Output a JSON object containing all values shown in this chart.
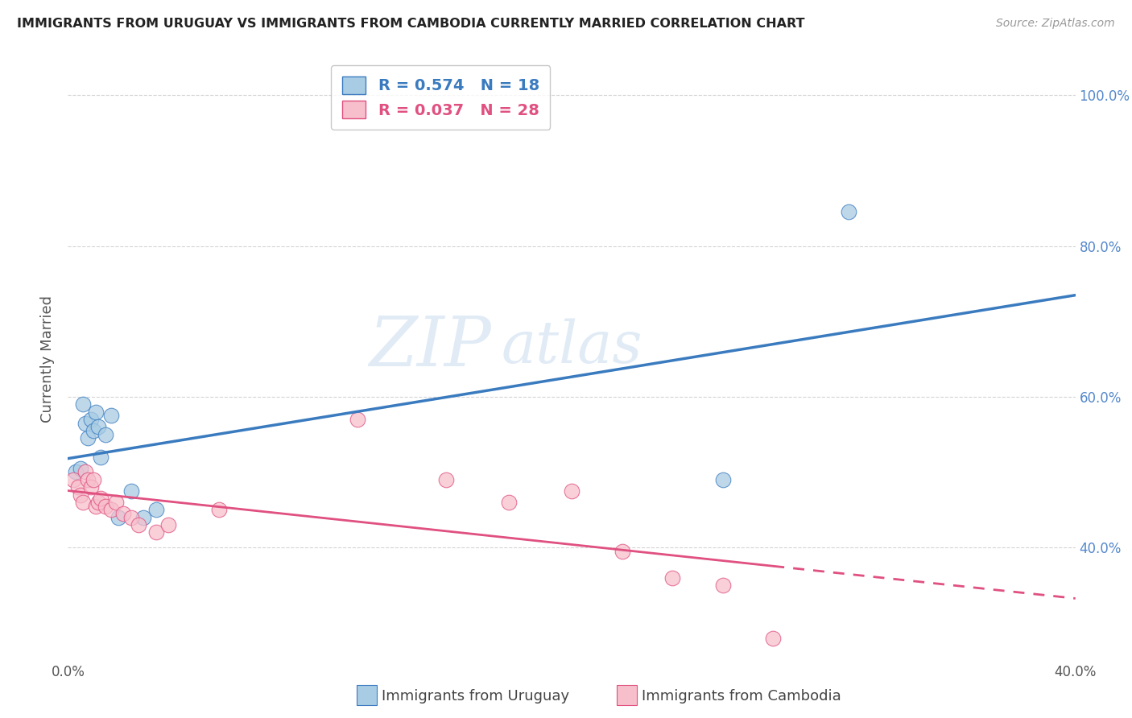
{
  "title": "IMMIGRANTS FROM URUGUAY VS IMMIGRANTS FROM CAMBODIA CURRENTLY MARRIED CORRELATION CHART",
  "source": "Source: ZipAtlas.com",
  "xlabel_label": "Immigrants from Uruguay",
  "ylabel_label": "Currently Married",
  "xlabel2_label": "Immigrants from Cambodia",
  "xmin": 0.0,
  "xmax": 0.4,
  "ymin": 0.25,
  "ymax": 1.05,
  "watermark_line1": "ZIP",
  "watermark_line2": "atlas",
  "uruguay_color": "#a8cce4",
  "cambodia_color": "#f7bfcc",
  "trendline_uruguay_color": "#3a7bbf",
  "trendline_cambodia_color": "#e05080",
  "R_uruguay": 0.574,
  "N_uruguay": 18,
  "R_cambodia": 0.037,
  "N_cambodia": 28,
  "uruguay_x": [
    0.003,
    0.005,
    0.006,
    0.007,
    0.008,
    0.009,
    0.01,
    0.011,
    0.012,
    0.013,
    0.015,
    0.017,
    0.02,
    0.025,
    0.03,
    0.035,
    0.26,
    0.31
  ],
  "uruguay_y": [
    0.5,
    0.505,
    0.59,
    0.565,
    0.545,
    0.57,
    0.555,
    0.58,
    0.56,
    0.52,
    0.55,
    0.575,
    0.44,
    0.475,
    0.44,
    0.45,
    0.49,
    0.845
  ],
  "cambodia_x": [
    0.002,
    0.004,
    0.005,
    0.006,
    0.007,
    0.008,
    0.009,
    0.01,
    0.011,
    0.012,
    0.013,
    0.015,
    0.017,
    0.019,
    0.022,
    0.025,
    0.028,
    0.035,
    0.04,
    0.06,
    0.115,
    0.15,
    0.175,
    0.2,
    0.22,
    0.24,
    0.26,
    0.28
  ],
  "cambodia_y": [
    0.49,
    0.48,
    0.47,
    0.46,
    0.5,
    0.49,
    0.48,
    0.49,
    0.455,
    0.46,
    0.465,
    0.455,
    0.45,
    0.46,
    0.445,
    0.44,
    0.43,
    0.42,
    0.43,
    0.45,
    0.57,
    0.49,
    0.46,
    0.475,
    0.395,
    0.36,
    0.35,
    0.28
  ],
  "background_color": "#ffffff",
  "grid_color": "#d0d0d0",
  "tick_color": "#5588cc",
  "axis_label_color": "#555555"
}
